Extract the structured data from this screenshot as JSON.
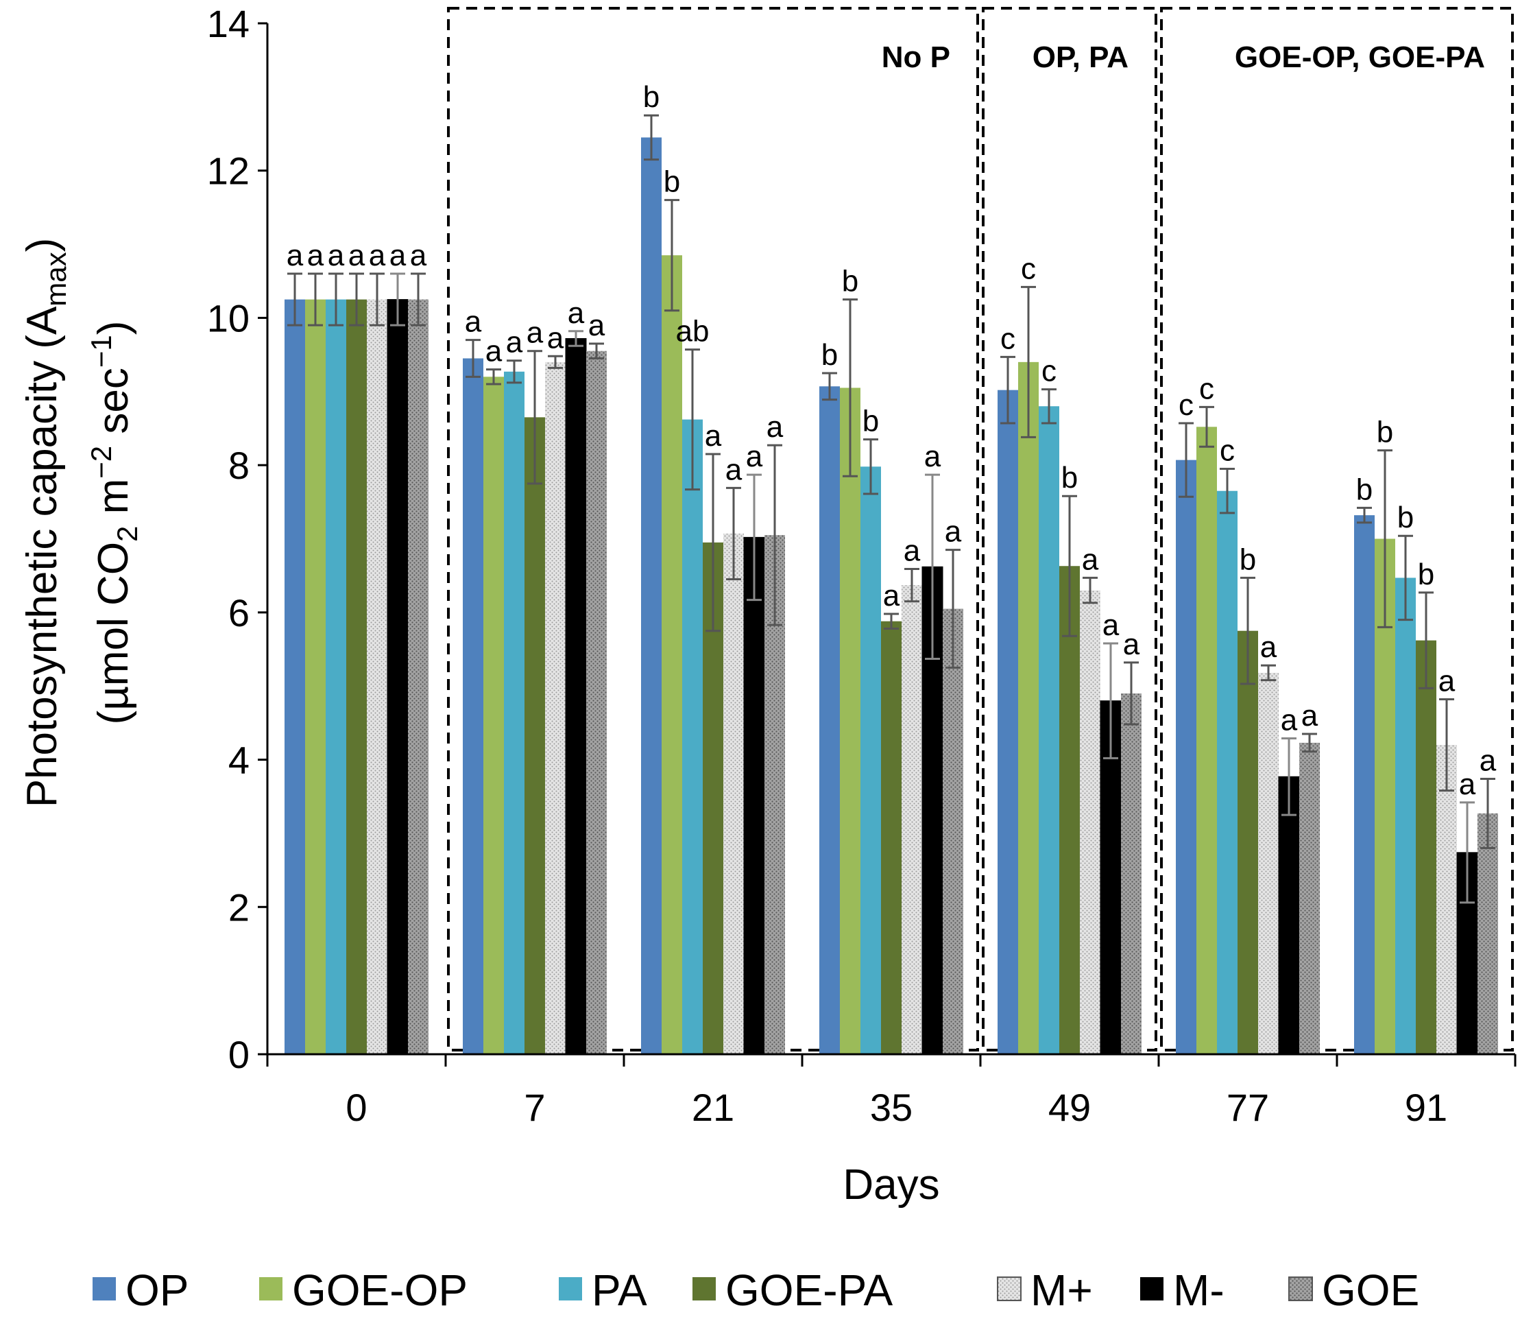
{
  "chart_data": {
    "type": "bar",
    "categories": [
      "0",
      "7",
      "21",
      "35",
      "49",
      "77",
      "91"
    ],
    "xlabel": "Days",
    "ylabel_line1": "Photosynthetic capacity (A",
    "ylabel_sub1": "max",
    "ylabel_line1_end": ")",
    "ylabel_line2": "(µmol CO",
    "ylabel_sub2": "2",
    "ylabel_mid2": " m",
    "ylabel_sup2": "−2",
    "ylabel_mid2b": " sec",
    "ylabel_sup2b": "−1",
    "ylabel_end2": ")",
    "ylim": [
      0,
      14
    ],
    "yticks": [
      0,
      2,
      4,
      6,
      8,
      10,
      12,
      14
    ],
    "series": [
      {
        "name": "OP",
        "color": "#4F81BD",
        "pattern": "solid",
        "values": [
          10.25,
          9.45,
          12.45,
          9.07,
          9.02,
          8.07,
          7.32
        ],
        "errors": [
          0.35,
          0.25,
          0.3,
          0.18,
          0.45,
          0.5,
          0.1
        ],
        "labels": [
          "a",
          "a",
          "b",
          "b",
          "c",
          "c",
          "b"
        ]
      },
      {
        "name": "GOE-OP",
        "color": "#9BBB59",
        "pattern": "solid",
        "values": [
          10.25,
          9.2,
          10.85,
          9.05,
          9.4,
          8.52,
          7.0
        ],
        "errors": [
          0.35,
          0.1,
          0.75,
          1.2,
          1.02,
          0.27,
          1.2
        ],
        "labels": [
          "a",
          "a",
          "b",
          "b",
          "c",
          "c",
          "b"
        ]
      },
      {
        "name": "PA",
        "color": "#4BACC6",
        "pattern": "solid",
        "values": [
          10.25,
          9.27,
          8.62,
          7.98,
          8.8,
          7.65,
          6.47
        ],
        "errors": [
          0.35,
          0.15,
          0.95,
          0.37,
          0.23,
          0.3,
          0.57
        ],
        "labels": [
          "a",
          "a",
          "ab",
          "b",
          "c",
          "c",
          "b"
        ]
      },
      {
        "name": "GOE-PA",
        "color": "#5F7530",
        "pattern": "solid",
        "values": [
          10.25,
          8.65,
          6.95,
          5.88,
          6.63,
          5.75,
          5.62
        ],
        "errors": [
          0.35,
          0.9,
          1.2,
          0.1,
          0.95,
          0.72,
          0.65
        ],
        "labels": [
          "a",
          "a",
          "a",
          "a",
          "b",
          "b",
          "b"
        ]
      },
      {
        "name": "M+",
        "color": "#D9D9D9",
        "pattern": "dots-light",
        "values": [
          10.25,
          9.4,
          7.07,
          6.37,
          6.3,
          5.18,
          4.2
        ],
        "errors": [
          0.35,
          0.08,
          0.62,
          0.22,
          0.17,
          0.1,
          0.62
        ],
        "labels": [
          "a",
          "a",
          "a",
          "a",
          "a",
          "a",
          "a"
        ]
      },
      {
        "name": "M-",
        "color": "#000000",
        "pattern": "solid",
        "values": [
          10.25,
          9.72,
          7.02,
          6.62,
          4.8,
          3.77,
          2.74
        ],
        "errors": [
          0.35,
          0.1,
          0.85,
          1.25,
          0.78,
          0.52,
          0.68
        ],
        "labels": [
          "a",
          "a",
          "a",
          "a",
          "a",
          "a",
          "a"
        ]
      },
      {
        "name": "GOE",
        "color": "#969696",
        "pattern": "dots-dark",
        "values": [
          10.25,
          9.55,
          7.05,
          6.05,
          4.9,
          4.23,
          3.27
        ],
        "errors": [
          0.35,
          0.1,
          1.22,
          0.8,
          0.42,
          0.12,
          0.47
        ],
        "labels": [
          "a",
          "a",
          "a",
          "a",
          "a",
          "a",
          "a"
        ]
      }
    ],
    "annotations": [
      {
        "text": "No P",
        "from_category": 1,
        "to_category": 3
      },
      {
        "text": "OP, PA",
        "from_category": 4,
        "to_category": 4
      },
      {
        "text": "GOE-OP, GOE-PA",
        "from_category": 5,
        "to_category": 6
      }
    ],
    "legend_position": "bottom",
    "grid": false
  }
}
